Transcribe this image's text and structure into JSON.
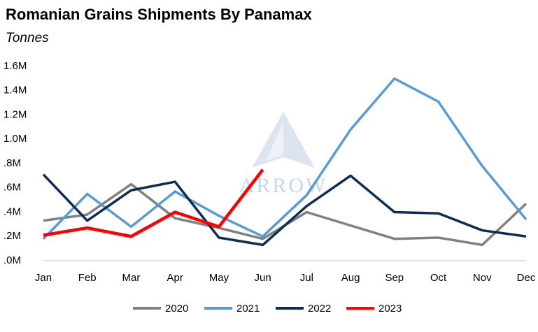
{
  "chart_data": {
    "type": "line",
    "title": "Romanian Grains Shipments By Panamax",
    "subtitle": "Tonnes",
    "watermark": "ARROW",
    "categories": [
      "Jan",
      "Feb",
      "Mar",
      "Apr",
      "May",
      "Jun",
      "Jul",
      "Aug",
      "Sep",
      "Oct",
      "Nov",
      "Dec"
    ],
    "series": [
      {
        "name": "2020",
        "color": "#808080",
        "values": [
          330000,
          380000,
          630000,
          350000,
          270000,
          180000,
          400000,
          290000,
          180000,
          190000,
          130000,
          470000
        ]
      },
      {
        "name": "2021",
        "color": "#5b9bd5",
        "values": [
          180000,
          550000,
          280000,
          570000,
          370000,
          200000,
          540000,
          1080000,
          1500000,
          1310000,
          780000,
          340000
        ]
      },
      {
        "name": "2022",
        "color": "#0d2d55",
        "values": [
          710000,
          330000,
          580000,
          650000,
          190000,
          130000,
          450000,
          700000,
          400000,
          390000,
          250000,
          200000
        ]
      },
      {
        "name": "2023",
        "color": "#ff0000",
        "values": [
          210000,
          270000,
          200000,
          400000,
          280000,
          750000,
          null,
          null,
          null,
          null,
          null,
          null
        ]
      }
    ],
    "ylim": [
      0,
      1600000
    ],
    "yticks": [
      {
        "value": 0,
        "label": ".0M"
      },
      {
        "value": 200000,
        "label": ".2M"
      },
      {
        "value": 400000,
        "label": ".4M"
      },
      {
        "value": 600000,
        "label": ".6M"
      },
      {
        "value": 800000,
        "label": ".8M"
      },
      {
        "value": 1000000,
        "label": "1.0M"
      },
      {
        "value": 1200000,
        "label": "1.2M"
      },
      {
        "value": 1400000,
        "label": "1.4M"
      },
      {
        "value": 1600000,
        "label": "1.6M"
      }
    ],
    "grid": false,
    "legend": "bottom"
  }
}
